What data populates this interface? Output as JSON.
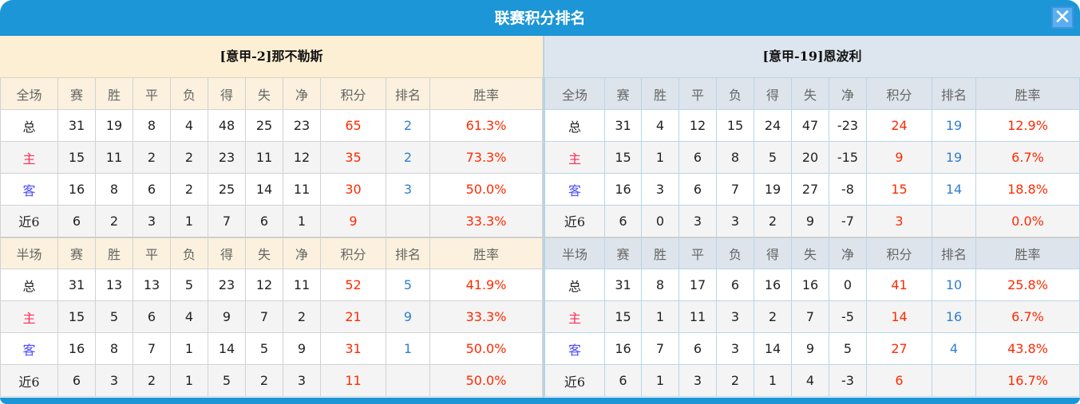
{
  "title": "联赛积分排名",
  "close_icon": "close-icon",
  "colors": {
    "accent": "#1c96d6",
    "points": "#ff2a00",
    "rank": "#2f7fd0",
    "home": "#ff2a55",
    "away": "#4b4bff"
  },
  "headers": {
    "full": [
      "全场",
      "赛",
      "胜",
      "平",
      "负",
      "得",
      "失",
      "净",
      "积分",
      "排名",
      "胜率"
    ],
    "half": [
      "半场",
      "赛",
      "胜",
      "平",
      "负",
      "得",
      "失",
      "净",
      "积分",
      "排名",
      "胜率"
    ]
  },
  "teams": [
    {
      "name": "[意甲-2]那不勒斯",
      "full": [
        [
          "总",
          "31",
          "19",
          "8",
          "4",
          "48",
          "25",
          "23",
          "65",
          "2",
          "61.3%"
        ],
        [
          "主",
          "15",
          "11",
          "2",
          "2",
          "23",
          "11",
          "12",
          "35",
          "2",
          "73.3%"
        ],
        [
          "客",
          "16",
          "8",
          "6",
          "2",
          "25",
          "14",
          "11",
          "30",
          "3",
          "50.0%"
        ],
        [
          "近6",
          "6",
          "2",
          "3",
          "1",
          "7",
          "6",
          "1",
          "9",
          "",
          "33.3%"
        ]
      ],
      "half": [
        [
          "总",
          "31",
          "13",
          "13",
          "5",
          "23",
          "12",
          "11",
          "52",
          "5",
          "41.9%"
        ],
        [
          "主",
          "15",
          "5",
          "6",
          "4",
          "9",
          "7",
          "2",
          "21",
          "9",
          "33.3%"
        ],
        [
          "客",
          "16",
          "8",
          "7",
          "1",
          "14",
          "5",
          "9",
          "31",
          "1",
          "50.0%"
        ],
        [
          "近6",
          "6",
          "3",
          "2",
          "1",
          "5",
          "2",
          "3",
          "11",
          "",
          "50.0%"
        ]
      ]
    },
    {
      "name": "[意甲-19]恩波利",
      "full": [
        [
          "总",
          "31",
          "4",
          "12",
          "15",
          "24",
          "47",
          "-23",
          "24",
          "19",
          "12.9%"
        ],
        [
          "主",
          "15",
          "1",
          "6",
          "8",
          "5",
          "20",
          "-15",
          "9",
          "19",
          "6.7%"
        ],
        [
          "客",
          "16",
          "3",
          "6",
          "7",
          "19",
          "27",
          "-8",
          "15",
          "14",
          "18.8%"
        ],
        [
          "近6",
          "6",
          "0",
          "3",
          "3",
          "2",
          "9",
          "-7",
          "3",
          "",
          "0.0%"
        ]
      ],
      "half": [
        [
          "总",
          "31",
          "8",
          "17",
          "6",
          "16",
          "16",
          "0",
          "41",
          "10",
          "25.8%"
        ],
        [
          "主",
          "15",
          "1",
          "11",
          "3",
          "2",
          "7",
          "-5",
          "14",
          "16",
          "6.7%"
        ],
        [
          "客",
          "16",
          "7",
          "6",
          "3",
          "14",
          "9",
          "5",
          "27",
          "4",
          "43.8%"
        ],
        [
          "近6",
          "6",
          "1",
          "3",
          "2",
          "1",
          "4",
          "-3",
          "6",
          "",
          "16.7%"
        ]
      ]
    }
  ]
}
